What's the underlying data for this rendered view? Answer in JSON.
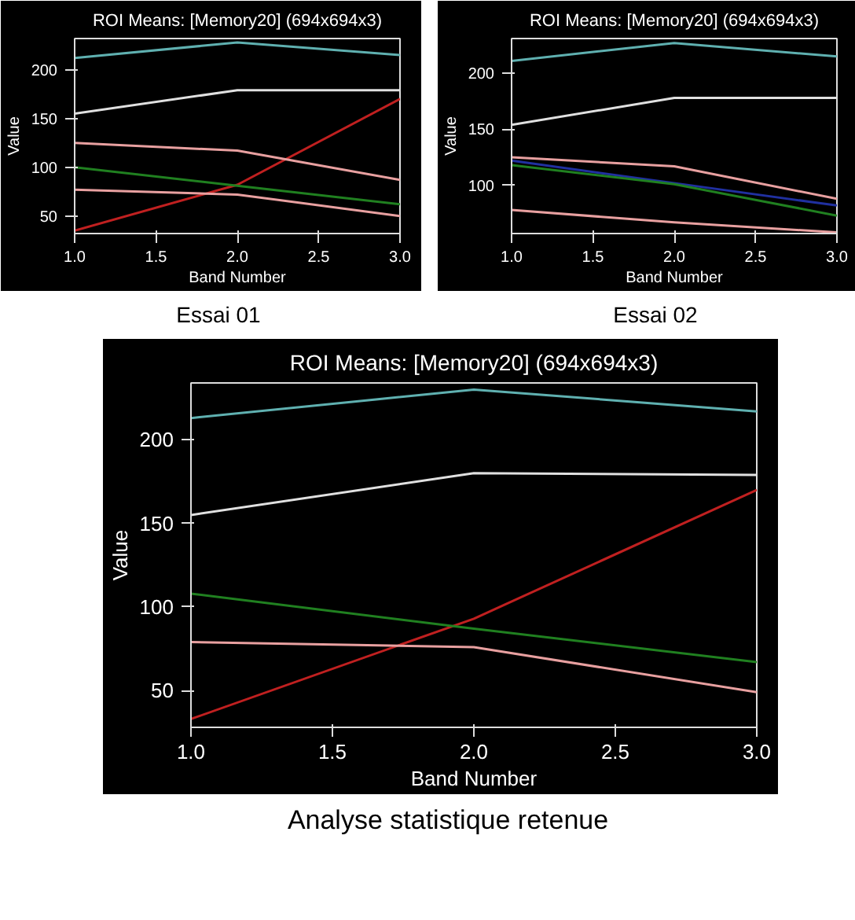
{
  "chart_data": [
    {
      "type": "line",
      "title": "ROI Means: [Memory20] (694x694x3)",
      "xlabel": "Band Number",
      "ylabel": "Value",
      "annotations": [
        "Essai 01"
      ],
      "x": [
        1,
        2,
        3
      ],
      "xlim": [
        1,
        3
      ],
      "ylim": [
        32,
        232
      ],
      "xticks": [
        {
          "value": 1,
          "label": "1.0"
        },
        {
          "value": 1.5,
          "label": "1.5"
        },
        {
          "value": 2,
          "label": "2.0"
        },
        {
          "value": 2.5,
          "label": "2.5"
        },
        {
          "value": 3,
          "label": "3.0"
        }
      ],
      "yticks": [
        50,
        100,
        150,
        200
      ],
      "grid": false,
      "series": [
        {
          "color": "#5fb0b0",
          "values": [
            212,
            228,
            215
          ]
        },
        {
          "color": "#e0e0e0",
          "values": [
            155,
            179,
            179
          ]
        },
        {
          "color": "#c02020",
          "values": [
            35,
            82,
            170
          ]
        },
        {
          "color": "#e8a0a0",
          "values": [
            125,
            117,
            87
          ]
        },
        {
          "color": "#208020",
          "values": [
            100,
            81,
            62
          ]
        },
        {
          "color": "#e8a0a0",
          "values": [
            77,
            72,
            50
          ]
        }
      ]
    },
    {
      "type": "line",
      "title": "ROI Means: [Memory20] (694x694x3)",
      "xlabel": "Band Number",
      "ylabel": "Value",
      "annotations": [
        "Essai 02"
      ],
      "x": [
        1,
        2,
        3
      ],
      "xlim": [
        1,
        3
      ],
      "ylim": [
        57,
        231
      ],
      "xticks": [
        {
          "value": 1,
          "label": "1.0"
        },
        {
          "value": 1.5,
          "label": "1.5"
        },
        {
          "value": 2,
          "label": "2.0"
        },
        {
          "value": 2.5,
          "label": "2.5"
        },
        {
          "value": 3,
          "label": "3.0"
        }
      ],
      "yticks": [
        100,
        150,
        200
      ],
      "grid": false,
      "series": [
        {
          "color": "#5fb0b0",
          "values": [
            211,
            227,
            215
          ]
        },
        {
          "color": "#e0e0e0",
          "values": [
            154,
            178,
            178
          ]
        },
        {
          "color": "#e8a0a0",
          "values": [
            125,
            117,
            88
          ]
        },
        {
          "color": "#2030a0",
          "values": [
            122,
            102,
            82
          ]
        },
        {
          "color": "#208020",
          "values": [
            118,
            101,
            73
          ]
        },
        {
          "color": "#e8a0a0",
          "values": [
            78,
            67,
            58
          ]
        }
      ]
    },
    {
      "type": "line",
      "title": "ROI Means: [Memory20] (694x694x3)",
      "xlabel": "Band Number",
      "ylabel": "Value",
      "annotations": [
        "Analyse statistique retenue"
      ],
      "x": [
        1,
        2,
        3
      ],
      "xlim": [
        1,
        3
      ],
      "ylim": [
        28,
        234
      ],
      "xticks": [
        {
          "value": 1,
          "label": "1.0"
        },
        {
          "value": 1.5,
          "label": "1.5"
        },
        {
          "value": 2,
          "label": "2.0"
        },
        {
          "value": 2.5,
          "label": "2.5"
        },
        {
          "value": 3,
          "label": "3.0"
        }
      ],
      "yticks": [
        50,
        100,
        150,
        200
      ],
      "grid": false,
      "series": [
        {
          "color": "#5fb0b0",
          "values": [
            213,
            230,
            217
          ]
        },
        {
          "color": "#e0e0e0",
          "values": [
            155,
            180,
            179
          ]
        },
        {
          "color": "#c02020",
          "values": [
            33,
            93,
            170
          ]
        },
        {
          "color": "#208020",
          "values": [
            108,
            87,
            67
          ]
        },
        {
          "color": "#e8a0a0",
          "values": [
            79,
            76,
            49
          ]
        }
      ]
    }
  ]
}
